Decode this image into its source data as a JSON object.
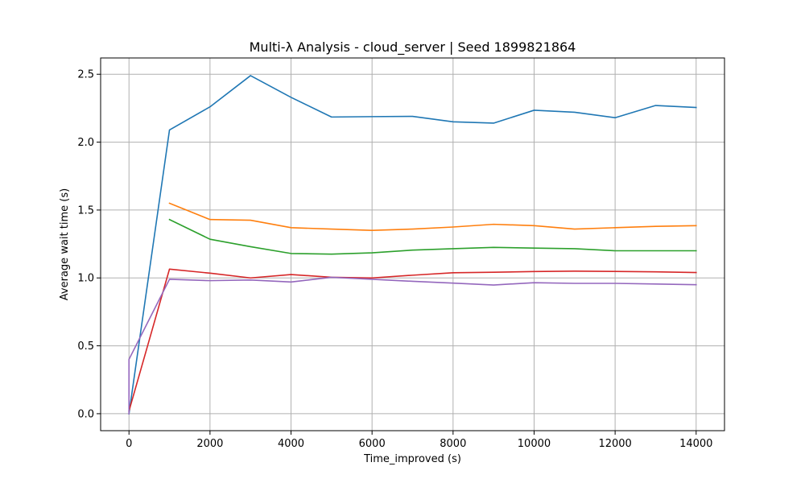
{
  "chart_data": {
    "type": "line",
    "title": "Multi-λ Analysis - cloud_server | Seed 1899821864",
    "xlabel": "Time_improved (s)",
    "ylabel": "Average wait time (s)",
    "xlim": [
      -700,
      14700
    ],
    "ylim": [
      -0.125,
      2.62
    ],
    "xticks": [
      0,
      2000,
      4000,
      6000,
      8000,
      10000,
      12000,
      14000
    ],
    "xtick_labels": [
      "0",
      "2000",
      "4000",
      "6000",
      "8000",
      "10000",
      "12000",
      "14000"
    ],
    "yticks": [
      0.0,
      0.5,
      1.0,
      1.5,
      2.0,
      2.5
    ],
    "ytick_labels": [
      "0.0",
      "0.5",
      "1.0",
      "1.5",
      "2.0",
      "2.5"
    ],
    "grid": true,
    "series": [
      {
        "color": "#1f77b4",
        "x": [
          0,
          1000,
          2000,
          3000,
          4000,
          5000,
          6000,
          7000,
          8000,
          9000,
          10000,
          11000,
          12000,
          13000,
          14000
        ],
        "y": [
          0.0,
          2.09,
          2.26,
          2.49,
          2.33,
          2.185,
          2.188,
          2.19,
          2.15,
          2.14,
          2.235,
          2.22,
          2.18,
          2.27,
          2.255
        ]
      },
      {
        "color": "#ff7f0e",
        "x": [
          1000,
          2000,
          3000,
          4000,
          5000,
          6000,
          7000,
          8000,
          9000,
          10000,
          11000,
          12000,
          13000,
          14000
        ],
        "y": [
          1.55,
          1.43,
          1.425,
          1.37,
          1.36,
          1.35,
          1.36,
          1.375,
          1.395,
          1.385,
          1.36,
          1.37,
          1.38,
          1.385
        ]
      },
      {
        "color": "#2ca02c",
        "x": [
          1000,
          2000,
          3000,
          4000,
          5000,
          6000,
          7000,
          8000,
          9000,
          10000,
          11000,
          12000,
          13000,
          14000
        ],
        "y": [
          1.43,
          1.285,
          1.23,
          1.18,
          1.175,
          1.185,
          1.205,
          1.215,
          1.225,
          1.22,
          1.215,
          1.2,
          1.2,
          1.2
        ]
      },
      {
        "color": "#d62728",
        "x": [
          0,
          1000,
          2000,
          3000,
          4000,
          5000,
          6000,
          7000,
          8000,
          9000,
          10000,
          11000,
          12000,
          13000,
          14000
        ],
        "y": [
          0.02,
          1.065,
          1.035,
          1.0,
          1.025,
          1.005,
          1.0,
          1.02,
          1.038,
          1.042,
          1.047,
          1.05,
          1.048,
          1.045,
          1.04
        ]
      },
      {
        "color": "#9467bd",
        "x": [
          0,
          0,
          1000,
          2000,
          3000,
          4000,
          5000,
          6000,
          7000,
          8000,
          9000,
          10000,
          11000,
          12000,
          13000,
          14000
        ],
        "y": [
          0.0,
          0.4,
          0.99,
          0.98,
          0.985,
          0.97,
          1.005,
          0.99,
          0.975,
          0.962,
          0.948,
          0.965,
          0.96,
          0.96,
          0.955,
          0.95
        ]
      }
    ]
  }
}
